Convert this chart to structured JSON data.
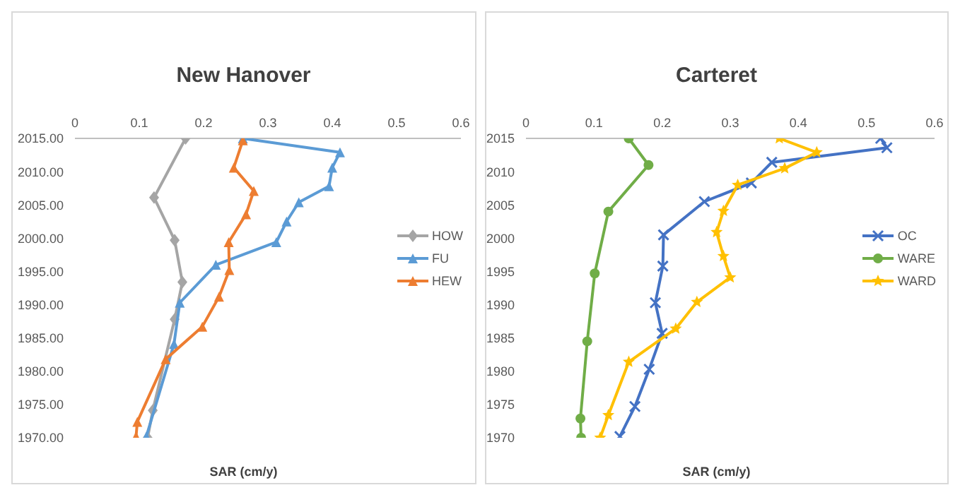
{
  "chart_data": [
    {
      "type": "line",
      "title": "New Hanover",
      "xlabel": "SAR (cm/y)",
      "orientation": "horizontal",
      "xlim": [
        0,
        0.6
      ],
      "xticks": [
        0,
        0.1,
        0.2,
        0.3,
        0.4,
        0.5,
        0.6
      ],
      "ylim": [
        1970,
        2015
      ],
      "yticks": [
        {
          "value": 2015,
          "label": "2015.00"
        },
        {
          "value": 2010,
          "label": "2010.00"
        },
        {
          "value": 2005,
          "label": "2005.00"
        },
        {
          "value": 2000,
          "label": "2000.00"
        },
        {
          "value": 1995,
          "label": "1995.00"
        },
        {
          "value": 1990,
          "label": "1990.00"
        },
        {
          "value": 1985,
          "label": "1985.00"
        },
        {
          "value": 1980,
          "label": "1980.00"
        },
        {
          "value": 1975,
          "label": "1975.00"
        },
        {
          "value": 1970,
          "label": "1970.00"
        }
      ],
      "grid": false,
      "legend": "right",
      "tick_labels": "xy",
      "series": [
        {
          "name": "HOW",
          "color": "#a5a5a5",
          "marker": "diamond",
          "x": [
            2015,
            2006.1,
            1999.7,
            1993.4,
            1987.8,
            1981.6,
            1974.1,
            1970
          ],
          "values": [
            0.172,
            0.123,
            0.155,
            0.167,
            0.155,
            null,
            0.121,
            0.113
          ]
        },
        {
          "name": "FU",
          "color": "#5b9bd5",
          "marker": "triangle",
          "x": [
            2015,
            2012.9,
            2010.6,
            2007.8,
            2005.4,
            2002.5,
            1999.4,
            1996,
            1990.3,
            1984.1,
            1970.2
          ],
          "values": [
            0.261,
            0.412,
            0.4,
            0.395,
            0.348,
            0.329,
            0.313,
            0.219,
            0.163,
            0.154,
            0.111
          ]
        },
        {
          "name": "HEW",
          "color": "#ed7d31",
          "marker": "triangle",
          "x": [
            2014.7,
            2010.6,
            2007.1,
            2003.6,
            1999.4,
            1995.2,
            1991.2,
            1986.7,
            1981.8,
            1972.4,
            1970.2
          ],
          "values": [
            0.261,
            0.247,
            0.278,
            0.266,
            0.239,
            0.24,
            0.224,
            0.198,
            0.141,
            0.097,
            0.095
          ]
        }
      ]
    },
    {
      "type": "line",
      "title": "Carteret",
      "xlabel": "SAR (cm/y)",
      "orientation": "horizontal",
      "xlim": [
        0,
        0.6
      ],
      "xticks": [
        0,
        0.1,
        0.2,
        0.3,
        0.4,
        0.5,
        0.6
      ],
      "ylim": [
        1970,
        2015
      ],
      "yticks": [
        2015,
        2010,
        2005,
        2000,
        1995,
        1990,
        1985,
        1980,
        1975,
        1970
      ],
      "grid": false,
      "legend": "right",
      "series": [
        {
          "name": "OC",
          "color": "#4472c4",
          "marker": "cross",
          "x": [
            2015,
            2013.6,
            2011.4,
            2008.3,
            2005.5,
            2000.5,
            1995.8,
            1990.3,
            1985.7,
            1980.3,
            1974.7,
            1970.2
          ],
          "values": [
            0.521,
            0.53,
            0.361,
            0.331,
            0.262,
            0.202,
            0.201,
            0.19,
            0.2,
            0.181,
            0.16,
            0.138
          ]
        },
        {
          "name": "WARE",
          "color": "#70ad47",
          "marker": "circle",
          "x": [
            2015,
            2011,
            2004,
            1994.7,
            1984.5,
            1972.9,
            1970
          ],
          "values": [
            0.151,
            0.18,
            0.121,
            0.101,
            0.09,
            0.08,
            0.081
          ]
        },
        {
          "name": "WARD",
          "color": "#ffc000",
          "marker": "star",
          "x": [
            2015,
            2012.9,
            2010.5,
            2008,
            2004.1,
            2000.9,
            1997.3,
            1994.1,
            1990.4,
            1986.4,
            1981.4,
            1973.4,
            1970
          ],
          "values": [
            0.372,
            0.427,
            0.38,
            0.311,
            0.29,
            0.28,
            0.29,
            0.3,
            0.251,
            0.22,
            0.151,
            0.121,
            0.109
          ]
        }
      ]
    }
  ]
}
